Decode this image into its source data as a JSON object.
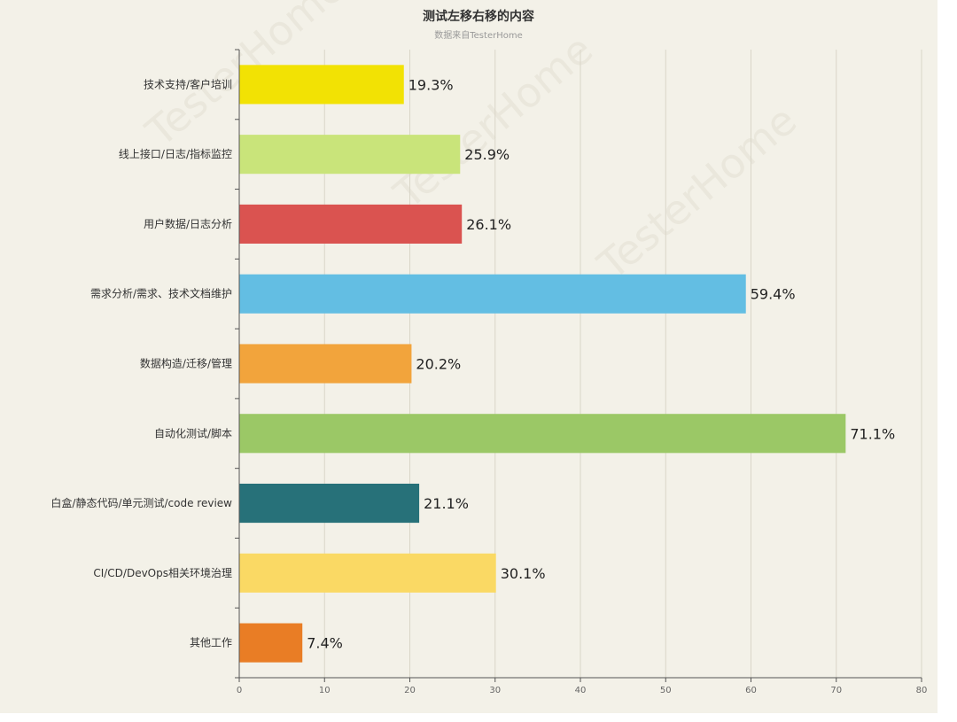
{
  "chart_data": {
    "type": "bar",
    "orientation": "horizontal",
    "title": "测试左移右移的内容",
    "subtitle": "数据来自TesterHome",
    "categories": [
      "技术支持/客户培训",
      "线上接口/日志/指标监控",
      "用户数据/日志分析",
      "需求分析/需求、技术文档维护",
      "数据构造/迁移/管理",
      "自动化测试/脚本",
      "白盒/静态代码/单元测试/code review",
      "CI/CD/DevOps相关环境治理",
      "其他工作"
    ],
    "values": [
      19.3,
      25.9,
      26.1,
      59.4,
      20.2,
      71.1,
      21.1,
      30.1,
      7.4
    ],
    "value_labels": [
      "19.3%",
      "25.9%",
      "26.1%",
      "59.4%",
      "20.2%",
      "71.1%",
      "21.1%",
      "30.1%",
      "7.4%"
    ],
    "colors": [
      "#f2e204",
      "#c9e47a",
      "#da5350",
      "#63bee3",
      "#f2a43c",
      "#9bc866",
      "#277179",
      "#fad964",
      "#e97d25"
    ],
    "xlim": [
      0,
      80
    ],
    "xticks": [
      0,
      10,
      20,
      30,
      40,
      50,
      60,
      70,
      80
    ],
    "grid": true,
    "watermark": "TesterHome"
  }
}
